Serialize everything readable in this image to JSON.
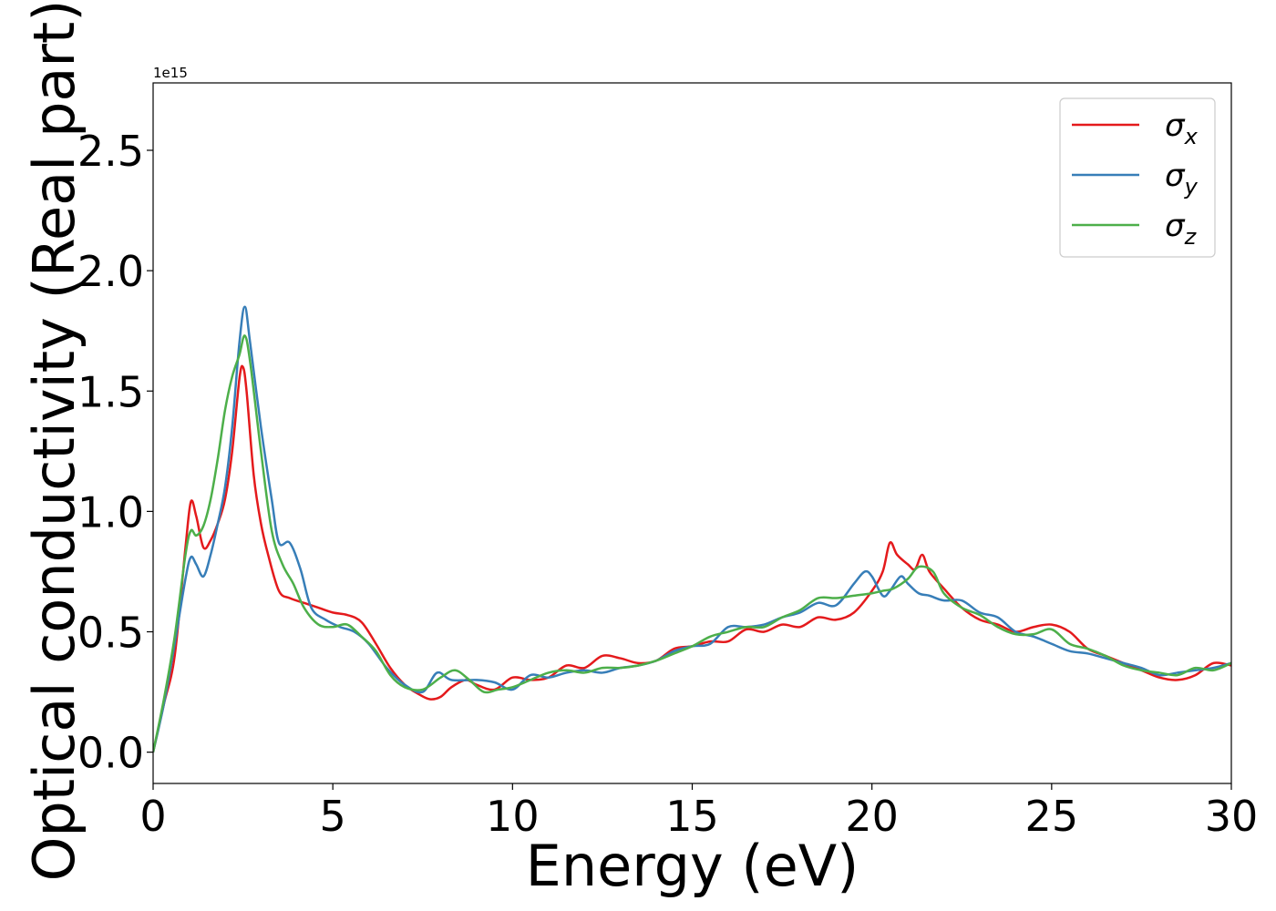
{
  "chart_data": {
    "type": "line",
    "title": "",
    "xlabel": "Energy (eV)",
    "ylabel": "Optical conductivity (Real part)",
    "offset_label": "1e15",
    "xlim": [
      0,
      30
    ],
    "ylim": [
      -0.13,
      2.78
    ],
    "x_ticks": [
      0,
      5,
      10,
      15,
      20,
      25,
      30
    ],
    "x_tick_labels": [
      "0",
      "5",
      "10",
      "15",
      "20",
      "25",
      "30"
    ],
    "y_ticks": [
      0.0,
      0.5,
      1.0,
      1.5,
      2.0,
      2.5
    ],
    "y_tick_labels": [
      "0.0",
      "0.5",
      "1.0",
      "1.5",
      "2.0",
      "2.5"
    ],
    "grid": false,
    "legend_position": "top-right",
    "series": [
      {
        "name": "σx",
        "label_base": "σ",
        "label_sub": "x",
        "color": "#e41a1c",
        "points": [
          [
            0,
            0
          ],
          [
            0.3,
            0.2
          ],
          [
            0.6,
            0.4
          ],
          [
            0.9,
            0.85
          ],
          [
            1.05,
            1.04
          ],
          [
            1.2,
            0.98
          ],
          [
            1.4,
            0.85
          ],
          [
            1.6,
            0.88
          ],
          [
            1.8,
            0.95
          ],
          [
            2.0,
            1.05
          ],
          [
            2.2,
            1.25
          ],
          [
            2.4,
            1.55
          ],
          [
            2.5,
            1.6
          ],
          [
            2.6,
            1.5
          ],
          [
            2.8,
            1.15
          ],
          [
            3.0,
            0.95
          ],
          [
            3.2,
            0.82
          ],
          [
            3.5,
            0.67
          ],
          [
            3.8,
            0.64
          ],
          [
            4.2,
            0.62
          ],
          [
            4.6,
            0.6
          ],
          [
            5.0,
            0.58
          ],
          [
            5.4,
            0.57
          ],
          [
            5.8,
            0.54
          ],
          [
            6.2,
            0.45
          ],
          [
            6.6,
            0.35
          ],
          [
            7.0,
            0.28
          ],
          [
            7.4,
            0.24
          ],
          [
            7.7,
            0.22
          ],
          [
            8.0,
            0.23
          ],
          [
            8.3,
            0.27
          ],
          [
            8.7,
            0.3
          ],
          [
            9.0,
            0.28
          ],
          [
            9.5,
            0.26
          ],
          [
            10.0,
            0.31
          ],
          [
            10.5,
            0.3
          ],
          [
            11.0,
            0.31
          ],
          [
            11.5,
            0.36
          ],
          [
            12.0,
            0.35
          ],
          [
            12.5,
            0.4
          ],
          [
            13.0,
            0.39
          ],
          [
            13.5,
            0.37
          ],
          [
            14.0,
            0.38
          ],
          [
            14.5,
            0.43
          ],
          [
            15.0,
            0.44
          ],
          [
            15.5,
            0.46
          ],
          [
            16.0,
            0.46
          ],
          [
            16.5,
            0.51
          ],
          [
            17.0,
            0.5
          ],
          [
            17.5,
            0.53
          ],
          [
            18.0,
            0.52
          ],
          [
            18.5,
            0.56
          ],
          [
            19.0,
            0.55
          ],
          [
            19.5,
            0.58
          ],
          [
            20.0,
            0.67
          ],
          [
            20.3,
            0.75
          ],
          [
            20.5,
            0.87
          ],
          [
            20.7,
            0.82
          ],
          [
            21.0,
            0.78
          ],
          [
            21.2,
            0.76
          ],
          [
            21.4,
            0.82
          ],
          [
            21.6,
            0.75
          ],
          [
            22.0,
            0.68
          ],
          [
            22.5,
            0.6
          ],
          [
            23.0,
            0.55
          ],
          [
            23.5,
            0.53
          ],
          [
            24.0,
            0.5
          ],
          [
            24.5,
            0.52
          ],
          [
            25.0,
            0.53
          ],
          [
            25.5,
            0.5
          ],
          [
            26.0,
            0.43
          ],
          [
            26.5,
            0.4
          ],
          [
            27.0,
            0.37
          ],
          [
            27.5,
            0.34
          ],
          [
            28.0,
            0.31
          ],
          [
            28.5,
            0.3
          ],
          [
            29.0,
            0.32
          ],
          [
            29.5,
            0.37
          ],
          [
            30.0,
            0.36
          ]
        ]
      },
      {
        "name": "σy",
        "label_base": "σ",
        "label_sub": "y",
        "color": "#377eb8",
        "points": [
          [
            0,
            0
          ],
          [
            0.3,
            0.2
          ],
          [
            0.6,
            0.45
          ],
          [
            0.9,
            0.72
          ],
          [
            1.05,
            0.81
          ],
          [
            1.2,
            0.78
          ],
          [
            1.4,
            0.73
          ],
          [
            1.6,
            0.82
          ],
          [
            1.8,
            0.95
          ],
          [
            2.0,
            1.1
          ],
          [
            2.2,
            1.35
          ],
          [
            2.4,
            1.7
          ],
          [
            2.55,
            1.85
          ],
          [
            2.7,
            1.7
          ],
          [
            3.0,
            1.35
          ],
          [
            3.3,
            1.05
          ],
          [
            3.5,
            0.87
          ],
          [
            3.8,
            0.87
          ],
          [
            4.1,
            0.76
          ],
          [
            4.4,
            0.6
          ],
          [
            4.8,
            0.55
          ],
          [
            5.2,
            0.52
          ],
          [
            5.6,
            0.5
          ],
          [
            6.0,
            0.45
          ],
          [
            6.5,
            0.35
          ],
          [
            7.0,
            0.28
          ],
          [
            7.5,
            0.25
          ],
          [
            7.9,
            0.33
          ],
          [
            8.3,
            0.3
          ],
          [
            9.0,
            0.3
          ],
          [
            9.5,
            0.29
          ],
          [
            10.0,
            0.26
          ],
          [
            10.5,
            0.32
          ],
          [
            11.0,
            0.31
          ],
          [
            11.5,
            0.33
          ],
          [
            12.0,
            0.34
          ],
          [
            12.5,
            0.33
          ],
          [
            13.0,
            0.35
          ],
          [
            13.5,
            0.36
          ],
          [
            14.0,
            0.38
          ],
          [
            14.5,
            0.42
          ],
          [
            15.0,
            0.44
          ],
          [
            15.5,
            0.45
          ],
          [
            16.0,
            0.52
          ],
          [
            16.5,
            0.52
          ],
          [
            17.0,
            0.53
          ],
          [
            17.5,
            0.56
          ],
          [
            18.0,
            0.58
          ],
          [
            18.5,
            0.62
          ],
          [
            19.0,
            0.61
          ],
          [
            19.5,
            0.7
          ],
          [
            19.8,
            0.75
          ],
          [
            20.0,
            0.73
          ],
          [
            20.3,
            0.65
          ],
          [
            20.5,
            0.67
          ],
          [
            20.8,
            0.73
          ],
          [
            21.0,
            0.7
          ],
          [
            21.3,
            0.66
          ],
          [
            21.6,
            0.65
          ],
          [
            22.0,
            0.63
          ],
          [
            22.5,
            0.63
          ],
          [
            23.0,
            0.58
          ],
          [
            23.5,
            0.56
          ],
          [
            24.0,
            0.5
          ],
          [
            24.5,
            0.48
          ],
          [
            25.0,
            0.45
          ],
          [
            25.5,
            0.42
          ],
          [
            26.0,
            0.41
          ],
          [
            26.5,
            0.39
          ],
          [
            27.0,
            0.37
          ],
          [
            27.5,
            0.35
          ],
          [
            28.0,
            0.32
          ],
          [
            28.5,
            0.33
          ],
          [
            29.0,
            0.34
          ],
          [
            29.5,
            0.35
          ],
          [
            30.0,
            0.37
          ]
        ]
      },
      {
        "name": "σz",
        "label_base": "σ",
        "label_sub": "z",
        "color": "#4daf4a",
        "points": [
          [
            0,
            0
          ],
          [
            0.3,
            0.22
          ],
          [
            0.6,
            0.48
          ],
          [
            0.9,
            0.82
          ],
          [
            1.05,
            0.92
          ],
          [
            1.2,
            0.9
          ],
          [
            1.4,
            0.94
          ],
          [
            1.6,
            1.05
          ],
          [
            1.8,
            1.22
          ],
          [
            2.0,
            1.42
          ],
          [
            2.2,
            1.56
          ],
          [
            2.4,
            1.65
          ],
          [
            2.55,
            1.73
          ],
          [
            2.7,
            1.62
          ],
          [
            3.0,
            1.25
          ],
          [
            3.3,
            0.92
          ],
          [
            3.6,
            0.78
          ],
          [
            3.9,
            0.7
          ],
          [
            4.2,
            0.6
          ],
          [
            4.6,
            0.53
          ],
          [
            5.0,
            0.52
          ],
          [
            5.4,
            0.53
          ],
          [
            5.8,
            0.48
          ],
          [
            6.2,
            0.42
          ],
          [
            6.6,
            0.32
          ],
          [
            7.0,
            0.27
          ],
          [
            7.5,
            0.26
          ],
          [
            8.0,
            0.31
          ],
          [
            8.4,
            0.34
          ],
          [
            8.8,
            0.3
          ],
          [
            9.2,
            0.25
          ],
          [
            9.6,
            0.26
          ],
          [
            10.0,
            0.27
          ],
          [
            10.5,
            0.3
          ],
          [
            11.0,
            0.33
          ],
          [
            11.5,
            0.34
          ],
          [
            12.0,
            0.33
          ],
          [
            12.5,
            0.35
          ],
          [
            13.0,
            0.35
          ],
          [
            13.5,
            0.36
          ],
          [
            14.0,
            0.38
          ],
          [
            14.5,
            0.41
          ],
          [
            15.0,
            0.44
          ],
          [
            15.5,
            0.48
          ],
          [
            16.0,
            0.5
          ],
          [
            16.5,
            0.52
          ],
          [
            17.0,
            0.52
          ],
          [
            17.5,
            0.56
          ],
          [
            18.0,
            0.59
          ],
          [
            18.5,
            0.64
          ],
          [
            19.0,
            0.64
          ],
          [
            19.5,
            0.65
          ],
          [
            20.0,
            0.66
          ],
          [
            20.3,
            0.67
          ],
          [
            20.6,
            0.68
          ],
          [
            21.0,
            0.72
          ],
          [
            21.3,
            0.77
          ],
          [
            21.7,
            0.75
          ],
          [
            22.0,
            0.66
          ],
          [
            22.5,
            0.6
          ],
          [
            23.0,
            0.57
          ],
          [
            23.5,
            0.52
          ],
          [
            24.0,
            0.49
          ],
          [
            24.5,
            0.49
          ],
          [
            25.0,
            0.51
          ],
          [
            25.5,
            0.45
          ],
          [
            26.0,
            0.43
          ],
          [
            26.5,
            0.4
          ],
          [
            27.0,
            0.36
          ],
          [
            27.5,
            0.34
          ],
          [
            28.0,
            0.33
          ],
          [
            28.5,
            0.32
          ],
          [
            29.0,
            0.35
          ],
          [
            29.5,
            0.34
          ],
          [
            30.0,
            0.37
          ]
        ]
      }
    ]
  }
}
